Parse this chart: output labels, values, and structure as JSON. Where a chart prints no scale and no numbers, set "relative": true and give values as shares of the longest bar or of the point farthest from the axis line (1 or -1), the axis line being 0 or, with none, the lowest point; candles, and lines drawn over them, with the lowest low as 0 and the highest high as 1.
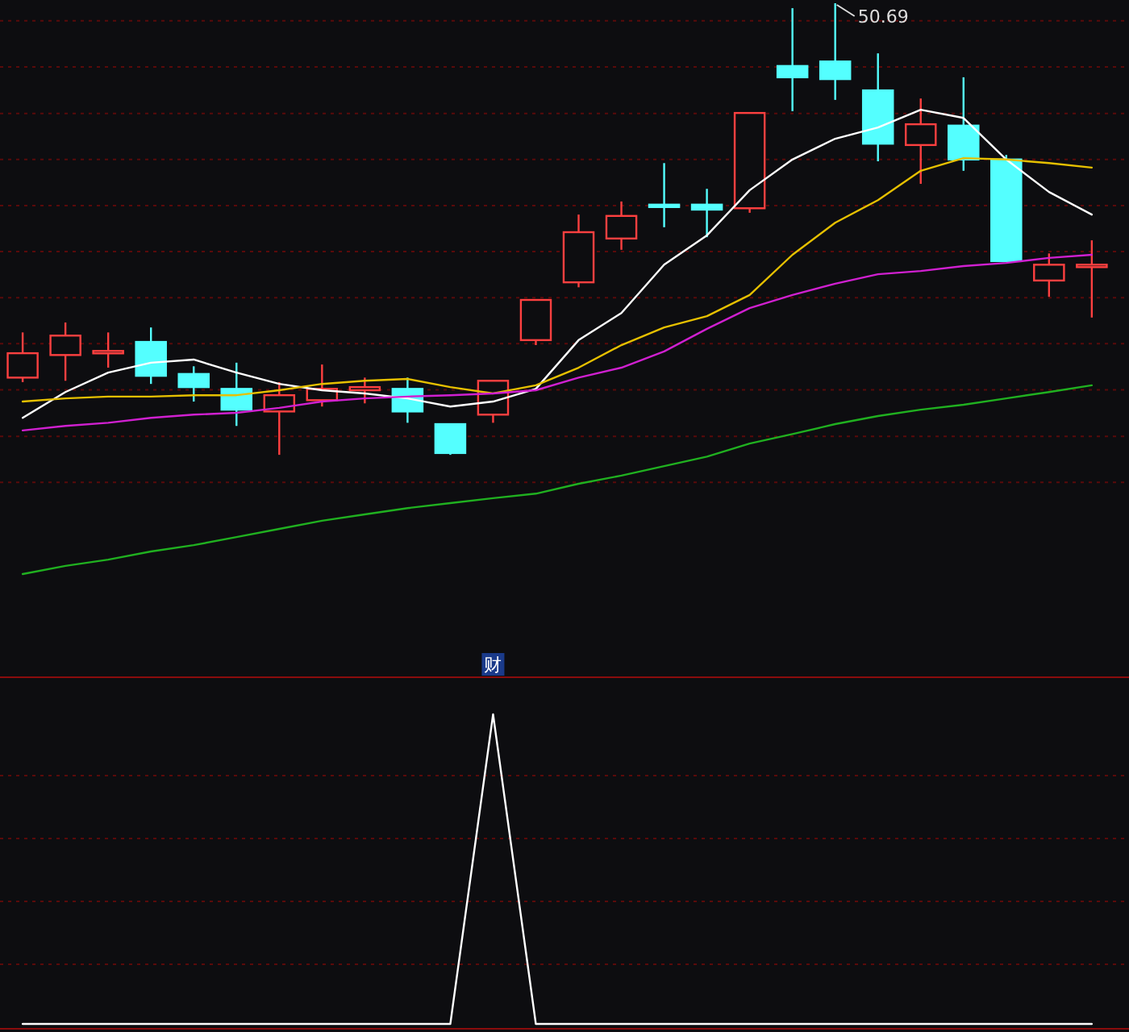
{
  "chart_data": [
    {
      "type": "candlestick",
      "relative": true,
      "categories": [
        null,
        null,
        null,
        null,
        null,
        null,
        null,
        null,
        null,
        null,
        null,
        null,
        null,
        null,
        null,
        null,
        null,
        null,
        null,
        null,
        null,
        null,
        null,
        null,
        null,
        null
      ],
      "ohlc": [
        [
          0.171,
          0.271,
          0.161,
          0.225
        ],
        [
          0.221,
          0.293,
          0.164,
          0.264
        ],
        [
          0.227,
          0.271,
          0.193,
          0.23
        ],
        [
          0.25,
          0.282,
          0.157,
          0.175
        ],
        [
          0.179,
          0.196,
          0.118,
          0.15
        ],
        [
          0.146,
          0.204,
          0.064,
          0.1
        ],
        [
          0.096,
          0.161,
          0,
          0.132
        ],
        [
          0.121,
          0.2,
          0.107,
          0.146
        ],
        [
          0.143,
          0.171,
          0.114,
          0.15
        ],
        [
          0.146,
          0.171,
          0.071,
          0.096
        ],
        [
          0.068,
          0.068,
          0,
          0.004
        ],
        [
          0.089,
          0.164,
          0.071,
          0.164
        ],
        [
          0.254,
          0.343,
          0.243,
          0.343
        ],
        [
          0.382,
          0.532,
          0.371,
          0.493
        ],
        [
          0.479,
          0.561,
          0.454,
          0.529
        ],
        [
          0.554,
          0.646,
          0.504,
          0.55
        ],
        [
          0.554,
          0.589,
          0.482,
          0.543
        ],
        [
          0.546,
          0.757,
          0.536,
          0.757
        ],
        [
          0.861,
          0.989,
          0.761,
          0.836
        ],
        [
          0.871,
          1,
          0.786,
          0.832
        ],
        [
          0.807,
          0.889,
          0.65,
          0.689
        ],
        [
          0.686,
          0.789,
          0.6,
          0.732
        ],
        [
          0.729,
          0.836,
          0.629,
          0.654
        ],
        [
          0.654,
          0.664,
          0.429,
          0.429
        ],
        [
          0.386,
          0.446,
          0.35,
          0.421
        ],
        [
          0.42,
          0.475,
          0.304,
          0.421
        ]
      ],
      "colors": [
        "#ff4040",
        "#ff4040",
        "#ff4040",
        "#54ffff",
        "#54ffff",
        "#54ffff",
        "#ff4040",
        "#ff4040",
        "#ff4040",
        "#54ffff",
        "#54ffff",
        "#ff4040",
        "#ff4040",
        "#ff4040",
        "#ff4040",
        "#54ffff",
        "#54ffff",
        "#ff4040",
        "#54ffff",
        "#54ffff",
        "#54ffff",
        "#ff4040",
        "#54ffff",
        "#54ffff",
        "#ff4040",
        "#ff4040"
      ],
      "series": [
        {
          "type": "line",
          "color": "#ffffff",
          "values": [
            0.082,
            0.139,
            0.182,
            0.204,
            0.211,
            0.182,
            0.157,
            0.143,
            0.136,
            0.125,
            0.107,
            0.118,
            0.146,
            0.254,
            0.314,
            0.421,
            0.486,
            0.586,
            0.654,
            0.7,
            0.725,
            0.764,
            0.746,
            0.654,
            0.582,
            0.532
          ]
        },
        {
          "type": "line",
          "color": "#e6c000",
          "values": [
            0.118,
            0.125,
            0.129,
            0.129,
            0.132,
            0.132,
            0.143,
            0.157,
            0.164,
            0.168,
            0.15,
            0.136,
            0.154,
            0.193,
            0.243,
            0.282,
            0.307,
            0.354,
            0.443,
            0.514,
            0.564,
            0.629,
            0.657,
            0.654,
            0.646,
            0.636
          ]
        },
        {
          "type": "line",
          "color": "#d020d0",
          "values": [
            0.054,
            0.064,
            0.071,
            0.082,
            0.089,
            0.093,
            0.104,
            0.118,
            0.125,
            0.129,
            0.132,
            0.136,
            0.143,
            0.171,
            0.193,
            0.229,
            0.279,
            0.325,
            0.354,
            0.379,
            0.4,
            0.407,
            0.418,
            0.425,
            0.436,
            0.443
          ]
        },
        {
          "type": "line",
          "color": "#20b020",
          "values": [
            -0.264,
            -0.246,
            -0.232,
            -0.214,
            -0.2,
            -0.182,
            -0.164,
            -0.146,
            -0.132,
            -0.118,
            -0.107,
            -0.096,
            -0.086,
            -0.064,
            -0.046,
            -0.025,
            -0.004,
            0.025,
            0.046,
            0.068,
            0.086,
            0.1,
            0.111,
            0.125,
            0.139,
            0.154
          ]
        }
      ],
      "ref_lines": [
        {
          "axis": "y",
          "value": 0.961,
          "color": "#5a0a0a",
          "line_style": "dotted"
        },
        {
          "axis": "y",
          "value": 0.859,
          "color": "#5a0a0a",
          "line_style": "dotted"
        },
        {
          "axis": "y",
          "value": 0.756,
          "color": "#5a0a0a",
          "line_style": "dotted"
        },
        {
          "axis": "y",
          "value": 0.654,
          "color": "#5a0a0a",
          "line_style": "dotted"
        },
        {
          "axis": "y",
          "value": 0.552,
          "color": "#5a0a0a",
          "line_style": "dotted"
        },
        {
          "axis": "y",
          "value": 0.45,
          "color": "#5a0a0a",
          "line_style": "dotted"
        },
        {
          "axis": "y",
          "value": 0.348,
          "color": "#5a0a0a",
          "line_style": "dotted"
        },
        {
          "axis": "y",
          "value": 0.246,
          "color": "#5a0a0a",
          "line_style": "dotted"
        },
        {
          "axis": "y",
          "value": 0.144,
          "color": "#5a0a0a",
          "line_style": "dotted"
        },
        {
          "axis": "y",
          "value": 0.041,
          "color": "#5a0a0a",
          "line_style": "dotted"
        },
        {
          "axis": "y",
          "value": -0.061,
          "color": "#5a0a0a",
          "line_style": "dotted"
        }
      ],
      "annotations": [
        "50.69"
      ]
    },
    {
      "type": "line",
      "relative": true,
      "categories": [
        null,
        null,
        null,
        null,
        null,
        null,
        null,
        null,
        null,
        null,
        null,
        null,
        null,
        null,
        null,
        null,
        null,
        null,
        null,
        null,
        null,
        null,
        null,
        null,
        null,
        null
      ],
      "series": [
        {
          "color": "#ffffff",
          "values": [
            0,
            0,
            0,
            0,
            0,
            0,
            0,
            0,
            0,
            0,
            0,
            1,
            0,
            0,
            0,
            0,
            0,
            0,
            0,
            0,
            0,
            0,
            0,
            0,
            0,
            0
          ]
        }
      ],
      "ref_lines": [
        {
          "axis": "y",
          "value": 0.802,
          "color": "#5a0a0a",
          "line_style": "dotted"
        },
        {
          "axis": "y",
          "value": 0.599,
          "color": "#5a0a0a",
          "line_style": "dotted"
        },
        {
          "axis": "y",
          "value": 0.396,
          "color": "#5a0a0a",
          "line_style": "dotted"
        },
        {
          "axis": "y",
          "value": 0.193,
          "color": "#5a0a0a",
          "line_style": "dotted"
        }
      ],
      "annotations": [
        "财"
      ]
    }
  ]
}
